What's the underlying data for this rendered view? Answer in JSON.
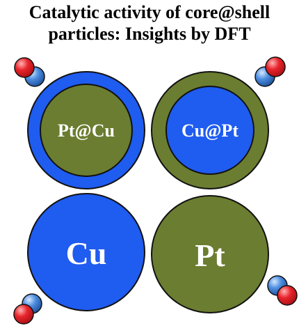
{
  "title": {
    "line1": "Catalytic activity of core@shell",
    "line2": "particles: Insights by DFT"
  },
  "particles": [
    {
      "label": "Pt@Cu",
      "core": "Pt",
      "shell": "Cu"
    },
    {
      "label": "Cu@Pt",
      "core": "Cu",
      "shell": "Pt"
    },
    {
      "label": "Cu",
      "core": "Cu",
      "shell": ""
    },
    {
      "label": "Pt",
      "core": "Pt",
      "shell": ""
    }
  ],
  "colors": {
    "Cu": "#1f5cf0",
    "Pt": "#6b7d30",
    "oxygen_atom": "#e8242b",
    "second_atom": "#4d8ee0",
    "outline": "#111111",
    "text": "#ffffff"
  },
  "icons": {
    "molecule": "diatomic-molecule-icon"
  }
}
